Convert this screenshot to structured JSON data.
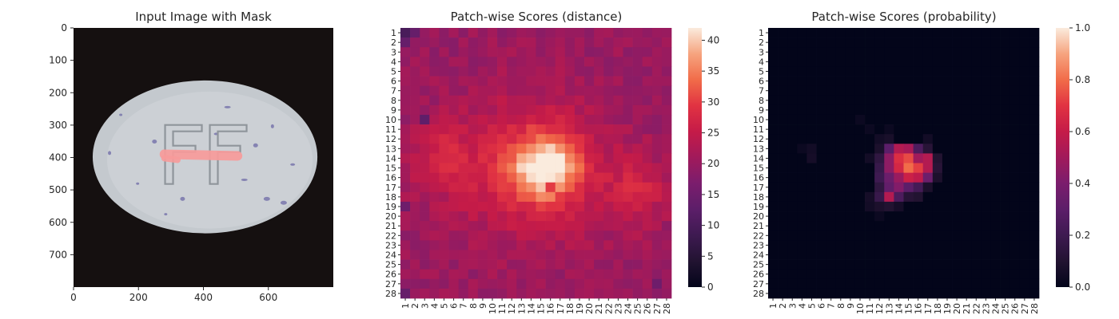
{
  "chart_data": [
    {
      "type": "image",
      "title": "Input Image with Mask",
      "xlim": [
        0,
        800
      ],
      "ylim": [
        800,
        0
      ],
      "xticks": [
        0,
        200,
        400,
        600
      ],
      "yticks": [
        0,
        100,
        200,
        300,
        400,
        500,
        600,
        700
      ],
      "image_content": {
        "object": "oval tablet with embossed letters",
        "embossed_text": "FF",
        "background_color": "#151010",
        "tablet_color": "#c4c9ce",
        "speck_color": "#6d6aa6",
        "mask_color": "#f79a9a",
        "tablet_center": [
          405,
          398
        ],
        "tablet_radii": [
          346,
          236
        ],
        "mask_segment": [
          [
            280,
            390
          ],
          [
            505,
            395
          ]
        ]
      }
    },
    {
      "type": "heatmap",
      "title": "Patch-wise Scores (distance)",
      "x_categories": [
        "1",
        "2",
        "3",
        "4",
        "5",
        "6",
        "7",
        "8",
        "9",
        "10",
        "11",
        "12",
        "13",
        "14",
        "15",
        "16",
        "17",
        "18",
        "19",
        "20",
        "21",
        "22",
        "23",
        "24",
        "25",
        "26",
        "27",
        "28"
      ],
      "y_categories": [
        "1",
        "2",
        "3",
        "4",
        "5",
        "6",
        "7",
        "8",
        "9",
        "10",
        "11",
        "12",
        "13",
        "14",
        "15",
        "16",
        "17",
        "18",
        "19",
        "20",
        "21",
        "22",
        "23",
        "24",
        "25",
        "26",
        "27",
        "28"
      ],
      "colorbar": {
        "min": 0,
        "max": 42,
        "ticks": [
          0,
          5,
          10,
          15,
          20,
          25,
          30,
          35,
          40
        ],
        "colormap": "rocket"
      },
      "value_model": {
        "description": "approximate per-patch distance scores",
        "base": 20,
        "components": [
          {
            "center": [
              15.5,
              15
            ],
            "sigma": [
              2.4,
              2.2
            ],
            "amplitude": 17
          },
          {
            "center": [
              14,
              15
            ],
            "sigma": [
              5.5,
              5
            ],
            "amplitude": 9
          },
          {
            "center": [
              4.5,
              14
            ],
            "sigma": [
              2,
              2.5
            ],
            "amplitude": 6
          },
          {
            "center": [
              25,
              17.5
            ],
            "sigma": [
              2.2,
              2.5
            ],
            "amplitude": 6
          }
        ],
        "overrides": [
          {
            "row": 1,
            "col": 1,
            "value": 10
          },
          {
            "row": 1,
            "col": 2,
            "value": 14
          },
          {
            "row": 2,
            "col": 1,
            "value": 14
          },
          {
            "row": 10,
            "col": 3,
            "value": 13
          },
          {
            "row": 19,
            "col": 1,
            "value": 15
          },
          {
            "row": 28,
            "col": 1,
            "value": 14
          },
          {
            "row": 27,
            "col": 27,
            "value": 15
          },
          {
            "row": 17,
            "col": 16,
            "value": 30
          }
        ]
      }
    },
    {
      "type": "heatmap",
      "title": "Patch-wise Scores (probability)",
      "x_categories": [
        "1",
        "2",
        "3",
        "4",
        "5",
        "6",
        "7",
        "8",
        "9",
        "10",
        "11",
        "12",
        "13",
        "14",
        "15",
        "16",
        "17",
        "18",
        "19",
        "20",
        "21",
        "22",
        "23",
        "24",
        "25",
        "26",
        "27",
        "28"
      ],
      "y_categories": [
        "1",
        "2",
        "3",
        "4",
        "5",
        "6",
        "7",
        "8",
        "9",
        "10",
        "11",
        "12",
        "13",
        "14",
        "15",
        "16",
        "17",
        "18",
        "19",
        "20",
        "21",
        "22",
        "23",
        "24",
        "25",
        "26",
        "27",
        "28"
      ],
      "colorbar": {
        "min": 0,
        "max": 1,
        "ticks": [
          0.0,
          0.2,
          0.4,
          0.6,
          0.8,
          1.0
        ],
        "tick_labels": [
          "0.0",
          "0.2",
          "0.4",
          "0.6",
          "0.8",
          "1.0"
        ],
        "colormap": "rocket"
      },
      "value_model": {
        "description": "approximate per-patch probability scores, near zero except cluster around rows 13-19, cols 11-18",
        "base": 0,
        "cells": [
          {
            "row": 10,
            "col": 10,
            "value": 0.03
          },
          {
            "row": 11,
            "col": 11,
            "value": 0.03
          },
          {
            "row": 11,
            "col": 13,
            "value": 0.03
          },
          {
            "row": 12,
            "col": 12,
            "value": 0.05
          },
          {
            "row": 12,
            "col": 13,
            "value": 0.07
          },
          {
            "row": 12,
            "col": 17,
            "value": 0.05
          },
          {
            "row": 13,
            "col": 4,
            "value": 0.03
          },
          {
            "row": 13,
            "col": 5,
            "value": 0.05
          },
          {
            "row": 14,
            "col": 5,
            "value": 0.06
          },
          {
            "row": 13,
            "col": 12,
            "value": 0.08
          },
          {
            "row": 13,
            "col": 13,
            "value": 0.3
          },
          {
            "row": 13,
            "col": 14,
            "value": 0.55
          },
          {
            "row": 13,
            "col": 15,
            "value": 0.52
          },
          {
            "row": 13,
            "col": 16,
            "value": 0.25
          },
          {
            "row": 13,
            "col": 17,
            "value": 0.12
          },
          {
            "row": 14,
            "col": 11,
            "value": 0.05
          },
          {
            "row": 14,
            "col": 12,
            "value": 0.15
          },
          {
            "row": 14,
            "col": 13,
            "value": 0.45
          },
          {
            "row": 14,
            "col": 14,
            "value": 0.68
          },
          {
            "row": 14,
            "col": 15,
            "value": 0.74
          },
          {
            "row": 14,
            "col": 16,
            "value": 0.5
          },
          {
            "row": 14,
            "col": 17,
            "value": 0.55
          },
          {
            "row": 14,
            "col": 18,
            "value": 0.1
          },
          {
            "row": 15,
            "col": 12,
            "value": 0.18
          },
          {
            "row": 15,
            "col": 13,
            "value": 0.45
          },
          {
            "row": 15,
            "col": 14,
            "value": 0.65
          },
          {
            "row": 15,
            "col": 15,
            "value": 0.8
          },
          {
            "row": 15,
            "col": 16,
            "value": 0.72
          },
          {
            "row": 15,
            "col": 17,
            "value": 0.55
          },
          {
            "row": 15,
            "col": 18,
            "value": 0.12
          },
          {
            "row": 16,
            "col": 12,
            "value": 0.2
          },
          {
            "row": 16,
            "col": 13,
            "value": 0.35
          },
          {
            "row": 16,
            "col": 14,
            "value": 0.48
          },
          {
            "row": 16,
            "col": 15,
            "value": 0.62
          },
          {
            "row": 16,
            "col": 16,
            "value": 0.58
          },
          {
            "row": 16,
            "col": 17,
            "value": 0.35
          },
          {
            "row": 16,
            "col": 18,
            "value": 0.08
          },
          {
            "row": 17,
            "col": 12,
            "value": 0.15
          },
          {
            "row": 17,
            "col": 13,
            "value": 0.32
          },
          {
            "row": 17,
            "col": 14,
            "value": 0.42
          },
          {
            "row": 17,
            "col": 15,
            "value": 0.3
          },
          {
            "row": 17,
            "col": 16,
            "value": 0.22
          },
          {
            "row": 17,
            "col": 17,
            "value": 0.08
          },
          {
            "row": 18,
            "col": 11,
            "value": 0.06
          },
          {
            "row": 18,
            "col": 12,
            "value": 0.18
          },
          {
            "row": 18,
            "col": 13,
            "value": 0.55
          },
          {
            "row": 18,
            "col": 14,
            "value": 0.25
          },
          {
            "row": 18,
            "col": 15,
            "value": 0.12
          },
          {
            "row": 18,
            "col": 16,
            "value": 0.1
          },
          {
            "row": 19,
            "col": 11,
            "value": 0.05
          },
          {
            "row": 19,
            "col": 12,
            "value": 0.08
          },
          {
            "row": 19,
            "col": 13,
            "value": 0.1
          },
          {
            "row": 19,
            "col": 14,
            "value": 0.06
          },
          {
            "row": 20,
            "col": 12,
            "value": 0.03
          }
        ]
      }
    }
  ]
}
